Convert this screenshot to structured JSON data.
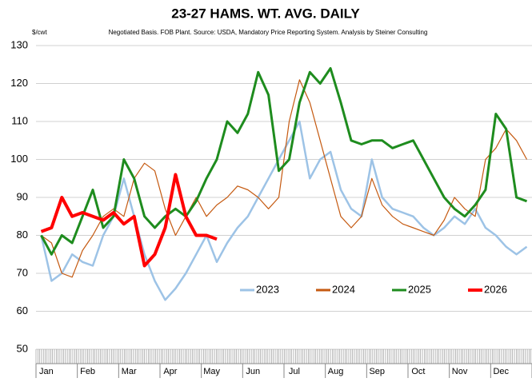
{
  "chart_data": {
    "type": "line",
    "title": "23-27 HAMS.  WT. AVG.  DAILY",
    "subtitle": "Negotiated Basis.  FOB Plant.  Source: USDA, Mandatory Price Reporting System.  Analysis by Steiner Consulting",
    "y_label": "$/cwt",
    "categories": [
      null,
      "Jan",
      null,
      null,
      null,
      "Feb",
      null,
      null,
      null,
      "Mar",
      null,
      null,
      null,
      "Apr",
      null,
      null,
      null,
      "May",
      null,
      null,
      null,
      "Jun",
      null,
      null,
      null,
      "Jul",
      null,
      null,
      null,
      "Aug",
      null,
      null,
      null,
      "Sep",
      null,
      null,
      null,
      "Oct",
      null,
      null,
      null,
      "Nov",
      null,
      null,
      null,
      "Dec",
      null,
      null
    ],
    "series": [
      {
        "name": "2023",
        "color": "#9dc3e6",
        "width": 2.5,
        "values": [
          80,
          68,
          70,
          75,
          73,
          72,
          80,
          85,
          95,
          85,
          75,
          68,
          63,
          66,
          70,
          75,
          80,
          73,
          78,
          82,
          85,
          90,
          95,
          100,
          105,
          110,
          95,
          100,
          102,
          92,
          87,
          85,
          100,
          90,
          87,
          86,
          85,
          82,
          80,
          82,
          85,
          83,
          87,
          82,
          80,
          77,
          75,
          77
        ]
      },
      {
        "name": "2024",
        "color": "#c55a11",
        "width": 1.2,
        "values": [
          80,
          78,
          70,
          69,
          76,
          80,
          85,
          87,
          85,
          95,
          99,
          97,
          87,
          80,
          85,
          90,
          85,
          88,
          90,
          93,
          92,
          90,
          87,
          90,
          110,
          121,
          115,
          105,
          95,
          85,
          82,
          85,
          95,
          88,
          85,
          83,
          82,
          81,
          80,
          84,
          90,
          87,
          85,
          100,
          103,
          108,
          105,
          100
        ]
      },
      {
        "name": "2025",
        "color": "#1e8c1e",
        "width": 3,
        "values": [
          80,
          75,
          80,
          78,
          85,
          92,
          82,
          85,
          100,
          95,
          85,
          82,
          85,
          87,
          85,
          89,
          95,
          100,
          110,
          107,
          112,
          123,
          117,
          97,
          100,
          115,
          123,
          120,
          124,
          115,
          105,
          104,
          105,
          105,
          103,
          104,
          105,
          100,
          95,
          90,
          87,
          85,
          88,
          92,
          112,
          108,
          90,
          89
        ]
      },
      {
        "name": "2026",
        "color": "#ff0000",
        "width": 4,
        "values": [
          81,
          82,
          90,
          85,
          86,
          85,
          84,
          86,
          83,
          85,
          72,
          75,
          82,
          96,
          85,
          80,
          80,
          79,
          null,
          null,
          null,
          null,
          null,
          null,
          null,
          null,
          null,
          null,
          null,
          null,
          null,
          null,
          null,
          null,
          null,
          null,
          null,
          null,
          null,
          null,
          null,
          null,
          null,
          null,
          null,
          null,
          null,
          null
        ]
      }
    ],
    "ylim": [
      50,
      130
    ],
    "yticks": [
      50,
      60,
      70,
      80,
      90,
      100,
      110,
      120,
      130
    ],
    "grid": true
  }
}
